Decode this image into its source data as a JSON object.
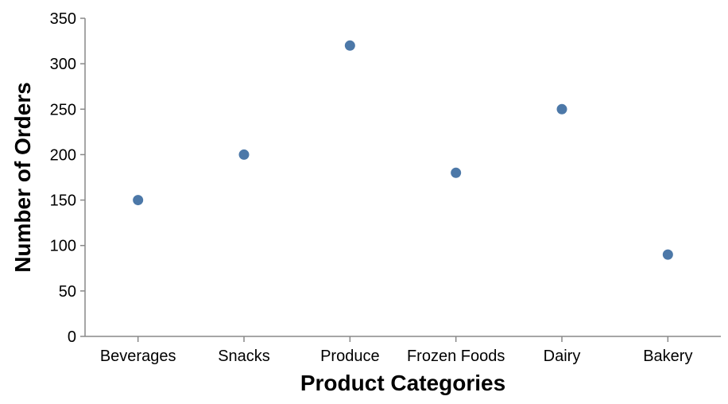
{
  "chart_data": {
    "type": "scatter",
    "title": "",
    "xlabel": "Product Categories",
    "ylabel": "Number of Orders",
    "categories": [
      "Beverages",
      "Snacks",
      "Produce",
      "Frozen Foods",
      "Dairy",
      "Bakery"
    ],
    "values": [
      150,
      200,
      320,
      180,
      250,
      90
    ],
    "ylim": [
      0,
      350
    ],
    "yticks": [
      0,
      50,
      100,
      150,
      200,
      250,
      300,
      350
    ],
    "grid": false,
    "legend": "none",
    "point_color": "#4c78a8"
  }
}
